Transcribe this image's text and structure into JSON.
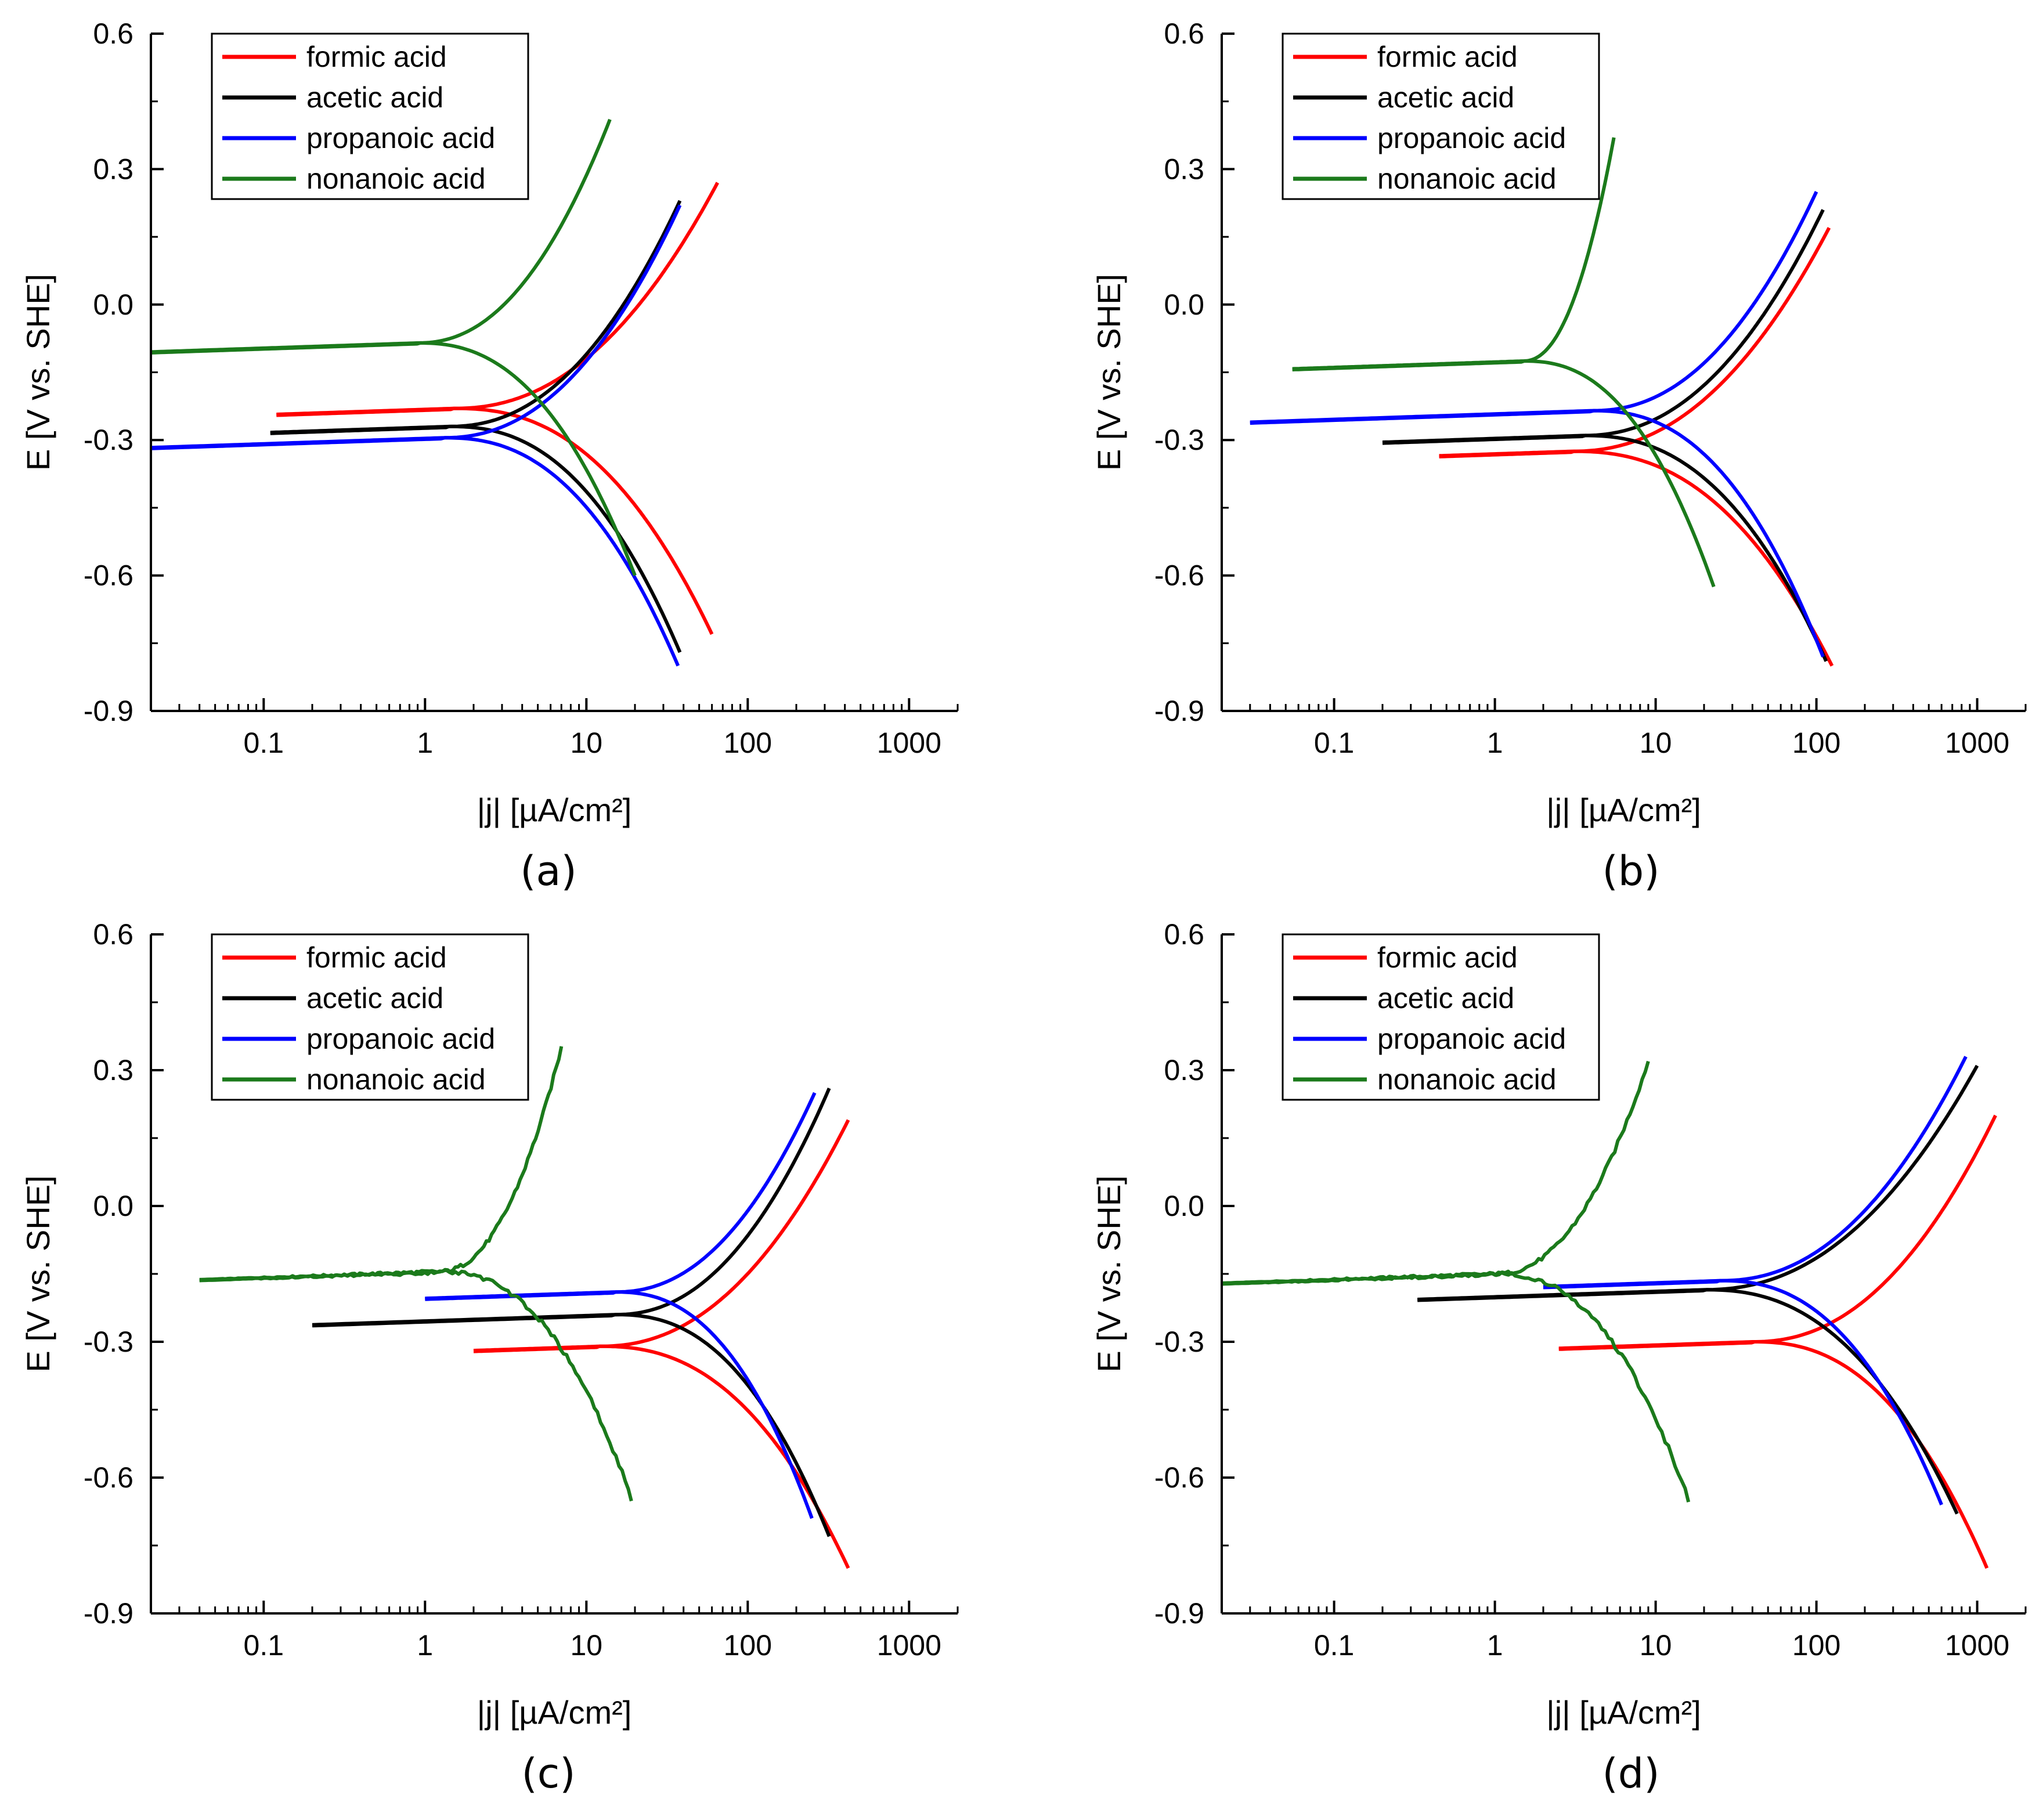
{
  "chart_data": [
    {
      "type": "line",
      "panel_label": "(a)",
      "xlabel": "|j| [µA/cm²]",
      "ylabel": "E [V vs. SHE]",
      "xscale": "log",
      "xlim": [
        0.02,
        2000
      ],
      "ylim": [
        -0.9,
        0.6
      ],
      "xticks": [
        "0.1",
        "1",
        "10",
        "100",
        "1000"
      ],
      "yticks": [
        "-0.9",
        "-0.6",
        "-0.3",
        "0.0",
        "0.3",
        "0.6"
      ],
      "legend_position": "top-left",
      "series": [
        {
          "name": "formic acid",
          "color": "#ff0000",
          "ecorr": -0.23,
          "jcorr": 1.5,
          "a_min": 0.12,
          "a_max": 65,
          "e_top": 0.27,
          "c_max": 60,
          "e_bot": -0.73
        },
        {
          "name": "acetic acid",
          "color": "#000000",
          "ecorr": -0.27,
          "jcorr": 1.4,
          "a_min": 0.11,
          "a_max": 38,
          "e_top": 0.23,
          "c_max": 38,
          "e_bot": -0.77
        },
        {
          "name": "propanoic acid",
          "color": "#0000ff",
          "ecorr": -0.295,
          "jcorr": 1.3,
          "a_min": 0.02,
          "a_max": 38,
          "e_top": 0.22,
          "c_max": 37,
          "e_bot": -0.8
        },
        {
          "name": "nonanoic acid",
          "color": "#1b7a1b",
          "ecorr": -0.085,
          "jcorr": 0.9,
          "a_min": 0.02,
          "a_max": 14,
          "e_top": 0.41,
          "c_max": 20,
          "e_bot": -0.6
        }
      ]
    },
    {
      "type": "line",
      "panel_label": "(b)",
      "xlabel": "|j| [µA/cm²]",
      "ylabel": "E [V vs. SHE]",
      "xscale": "log",
      "xlim": [
        0.02,
        2000
      ],
      "ylim": [
        -0.9,
        0.6
      ],
      "xticks": [
        "0.1",
        "1",
        "10",
        "100",
        "1000"
      ],
      "yticks": [
        "-0.9",
        "-0.6",
        "-0.3",
        "0.0",
        "0.3",
        "0.6"
      ],
      "legend_position": "top-left",
      "series": [
        {
          "name": "formic acid",
          "color": "#ff0000",
          "ecorr": -0.325,
          "jcorr": 3.0,
          "a_min": 0.45,
          "a_max": 120,
          "e_top": 0.17,
          "c_max": 125,
          "e_bot": -0.8
        },
        {
          "name": "acetic acid",
          "color": "#000000",
          "ecorr": -0.29,
          "jcorr": 3.5,
          "a_min": 0.2,
          "a_max": 110,
          "e_top": 0.21,
          "c_max": 115,
          "e_bot": -0.79
        },
        {
          "name": "propanoic acid",
          "color": "#0000ff",
          "ecorr": -0.235,
          "jcorr": 4.0,
          "a_min": 0.03,
          "a_max": 100,
          "e_top": 0.25,
          "c_max": 110,
          "e_bot": -0.78
        },
        {
          "name": "nonanoic acid",
          "color": "#1b7a1b",
          "ecorr": -0.125,
          "jcorr": 1.5,
          "a_min": 0.055,
          "a_max": 5.5,
          "e_top": 0.37,
          "c_max": 23,
          "e_bot": -0.625
        }
      ]
    },
    {
      "type": "line",
      "panel_label": "(c)",
      "xlabel": "|j| [µA/cm²]",
      "ylabel": "E [V vs. SHE]",
      "xscale": "log",
      "xlim": [
        0.02,
        2000
      ],
      "ylim": [
        -0.9,
        0.6
      ],
      "xticks": [
        "0.1",
        "1",
        "10",
        "100",
        "1000"
      ],
      "yticks": [
        "-0.9",
        "-0.6",
        "-0.3",
        "0.0",
        "0.3",
        "0.6"
      ],
      "legend_position": "top-left",
      "series": [
        {
          "name": "formic acid",
          "color": "#ff0000",
          "ecorr": -0.31,
          "jcorr": 12,
          "a_min": 2.0,
          "a_max": 420,
          "e_top": 0.19,
          "c_max": 420,
          "e_bot": -0.8
        },
        {
          "name": "acetic acid",
          "color": "#000000",
          "ecorr": -0.24,
          "jcorr": 15,
          "a_min": 0.2,
          "a_max": 320,
          "e_top": 0.26,
          "c_max": 320,
          "e_bot": -0.73
        },
        {
          "name": "propanoic acid",
          "color": "#0000ff",
          "ecorr": -0.19,
          "jcorr": 15,
          "a_min": 1.0,
          "a_max": 260,
          "e_top": 0.25,
          "c_max": 250,
          "e_bot": -0.69
        },
        {
          "name": "nonanoic acid",
          "color": "#1b7a1b",
          "ecorr": -0.145,
          "jcorr": 1.2,
          "a_min": 0.04,
          "a_max": 7,
          "e_top": 0.35,
          "c_max": 19,
          "e_bot": -0.645
        }
      ]
    },
    {
      "type": "line",
      "panel_label": "(d)",
      "xlabel": "|j| [µA/cm²]",
      "ylabel": "E [V vs. SHE]",
      "xscale": "log",
      "xlim": [
        0.02,
        2000
      ],
      "ylim": [
        -0.9,
        0.6
      ],
      "xticks": [
        "0.1",
        "1",
        "10",
        "100",
        "1000"
      ],
      "yticks": [
        "-0.9",
        "-0.6",
        "-0.3",
        "0.0",
        "0.3",
        "0.6"
      ],
      "legend_position": "top-left",
      "series": [
        {
          "name": "formic acid",
          "color": "#ff0000",
          "ecorr": -0.3,
          "jcorr": 40,
          "a_min": 2.5,
          "a_max": 1300,
          "e_top": 0.2,
          "c_max": 1150,
          "e_bot": -0.8
        },
        {
          "name": "acetic acid",
          "color": "#000000",
          "ecorr": -0.185,
          "jcorr": 20,
          "a_min": 0.33,
          "a_max": 1000,
          "e_top": 0.31,
          "c_max": 750,
          "e_bot": -0.68
        },
        {
          "name": "propanoic acid",
          "color": "#0000ff",
          "ecorr": -0.165,
          "jcorr": 25,
          "a_min": 2.0,
          "a_max": 850,
          "e_top": 0.33,
          "c_max": 600,
          "e_bot": -0.66
        },
        {
          "name": "nonanoic acid",
          "color": "#1b7a1b",
          "ecorr": -0.15,
          "jcorr": 1.0,
          "a_min": 0.02,
          "a_max": 9,
          "e_top": 0.32,
          "c_max": 16,
          "e_bot": -0.65
        }
      ]
    }
  ]
}
